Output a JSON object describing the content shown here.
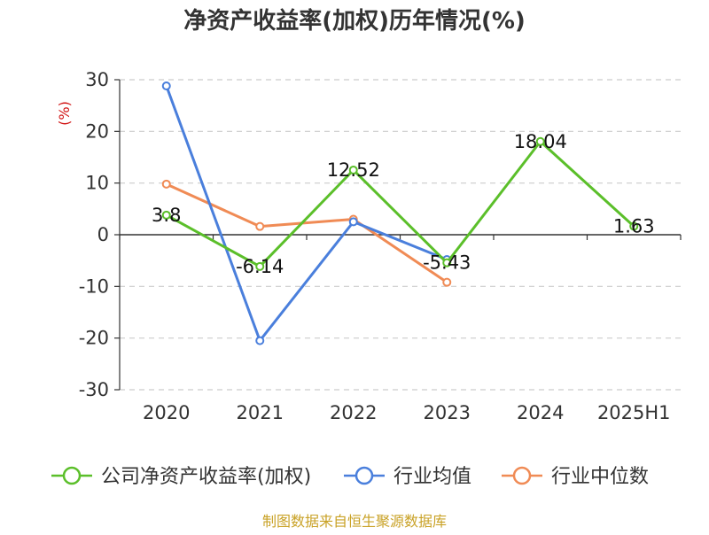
{
  "chart_data": {
    "type": "line",
    "title": "净资产收益率(加权)历年情况(%)",
    "ylabel": "(%)",
    "categories": [
      "2020",
      "2021",
      "2022",
      "2023",
      "2024",
      "2025H1"
    ],
    "ylim": [
      -30,
      30
    ],
    "yticks": [
      "30",
      "20",
      "10",
      "0",
      "-10",
      "-20",
      "-30"
    ],
    "grid": "horizontal dashed",
    "legend_position": "bottom",
    "series": [
      {
        "name": "公司净资产收益率(加权)",
        "color": "#5bbf2a",
        "values": [
          3.8,
          -6.14,
          12.52,
          -5.43,
          18.04,
          1.63
        ],
        "labels": [
          "3.8",
          "-6.14",
          "12.52",
          "-5.43",
          "18.04",
          "1.63"
        ]
      },
      {
        "name": "行业均值",
        "color": "#4a7fdc",
        "values": [
          28.8,
          -20.5,
          2.5,
          -4.8,
          null,
          null
        ]
      },
      {
        "name": "行业中位数",
        "color": "#f08b55",
        "values": [
          9.8,
          1.6,
          3.0,
          -9.2,
          null,
          null
        ]
      }
    ],
    "source": "制图数据来自恒生聚源数据库",
    "colors": {
      "axis": "#333333",
      "grid": "#cccccc",
      "unit": "#d11414",
      "source": "#c9a227"
    }
  }
}
